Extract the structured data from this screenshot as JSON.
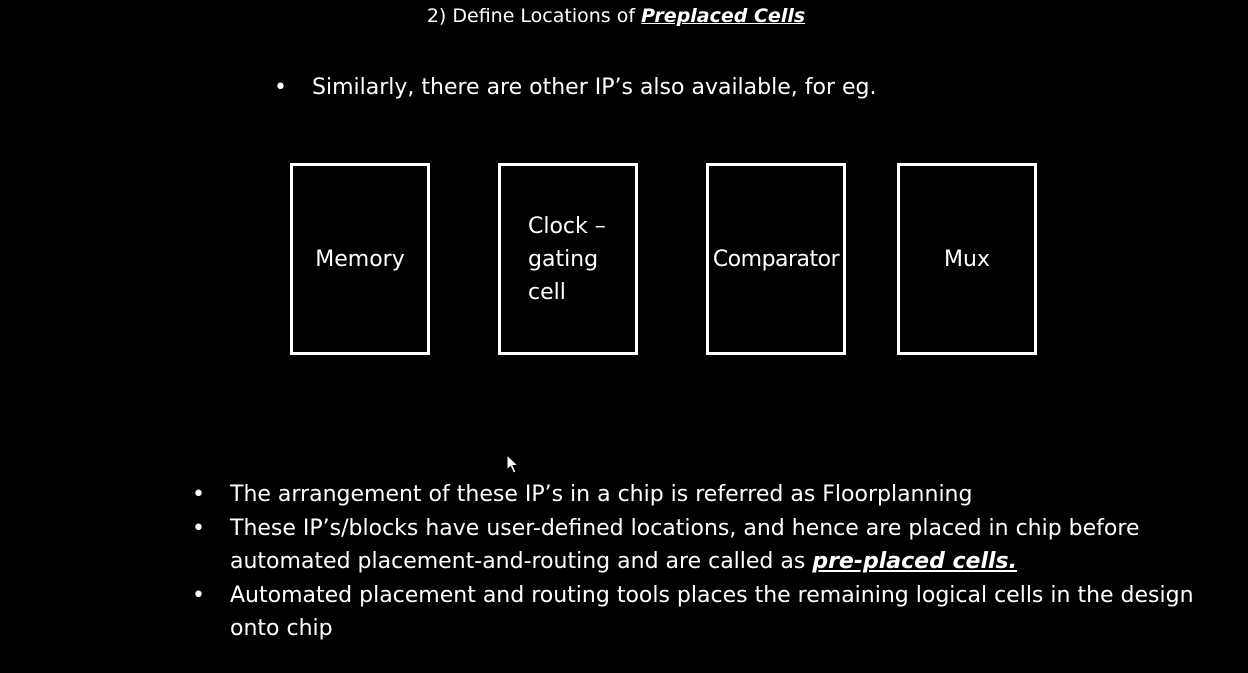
{
  "slide": {
    "title_prefix": "2) Define Locations of ",
    "title_emphasis": "Preplaced Cells",
    "bullet_symbol": "•",
    "intro_text": "Similarly, there are other IP’s also available, for eg.",
    "ip_blocks": [
      {
        "label": "Memory"
      },
      {
        "label_lines": [
          "Clock –",
          "gating",
          "cell"
        ]
      },
      {
        "label": "Comparator"
      },
      {
        "label": "Mux"
      }
    ],
    "bullets": [
      {
        "text": "The arrangement of these IP’s in a chip is referred  as Floorplanning"
      },
      {
        "text": "These IP’s/blocks have user-defined locations, and hence are placed in chip before automated placement-and-routing and are called as ",
        "emphasis": "pre-placed cells."
      },
      {
        "text": "Automated placement and routing tools places the remaining logical cells in the design onto chip"
      }
    ]
  },
  "colors": {
    "background": "#000000",
    "foreground": "#ffffff"
  }
}
